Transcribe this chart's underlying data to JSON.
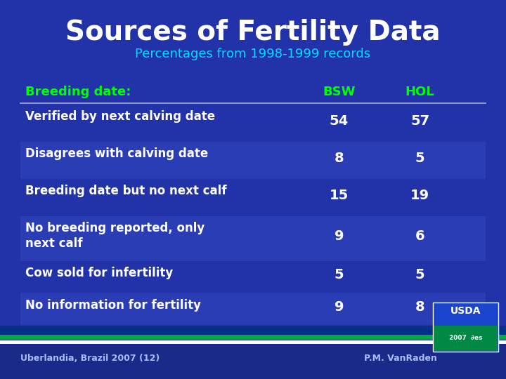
{
  "title": "Sources of Fertility Data",
  "subtitle": "Percentages from 1998-1999 records",
  "bg_color": "#2233aa",
  "title_color": "#ffffff",
  "subtitle_color": "#00ddff",
  "header_color": "#00ff00",
  "row_label_color": "#ffffff",
  "value_color": "#ffffff",
  "header_row": [
    "Breeding date:",
    "BSW",
    "HOL"
  ],
  "rows": [
    [
      "Verified by next calving date",
      "54",
      "57"
    ],
    [
      "Disagrees with calving date",
      "8",
      "5"
    ],
    [
      "Breeding date but no next calf",
      "15",
      "19"
    ],
    [
      "No breeding reported, only\nnext calf",
      "9",
      "6"
    ],
    [
      "Cow sold for infertility",
      "5",
      "5"
    ],
    [
      "No information for fertility",
      "9",
      "8"
    ]
  ],
  "footer_left": "Uberlandia, Brazil 2007 (12)",
  "footer_right": "P.M. VanRaden",
  "footer_color": "#aabbff",
  "stripe_colors": [
    "#2233aa",
    "#2a3db5"
  ],
  "divider_color": "#aaaacc",
  "bottom_bar_colors": [
    "#003388",
    "#00aa44",
    "#ffffff"
  ],
  "usda_box_color": "#1144cc"
}
